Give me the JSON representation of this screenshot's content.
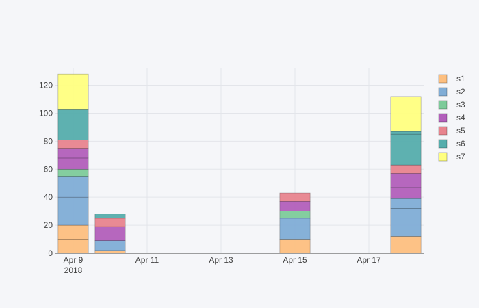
{
  "chart_data": {
    "type": "bar",
    "barmode": "stack",
    "x": [
      "2018-04-09",
      "2018-04-10",
      "2018-04-15",
      "2018-04-18"
    ],
    "x_range": [
      "2018-04-08 12:00",
      "2018-04-18 12:00"
    ],
    "x_ticks": [
      {
        "date": "2018-04-09",
        "label": "Apr 9",
        "sub": "2018"
      },
      {
        "date": "2018-04-11",
        "label": "Apr 11",
        "sub": ""
      },
      {
        "date": "2018-04-13",
        "label": "Apr 13",
        "sub": ""
      },
      {
        "date": "2018-04-15",
        "label": "Apr 15",
        "sub": ""
      },
      {
        "date": "2018-04-17",
        "label": "Apr 17",
        "sub": ""
      }
    ],
    "ylim": [
      0,
      132
    ],
    "y_ticks": [
      0,
      20,
      40,
      60,
      80,
      100,
      120
    ],
    "grid": true,
    "legend_position": "top-right",
    "series": [
      {
        "name": "s1",
        "color": "#fdbf7f",
        "segments": [
          [
            10,
            10
          ],
          [
            2
          ],
          [
            10
          ],
          [
            12
          ]
        ]
      },
      {
        "name": "s2",
        "color": "#80add6",
        "segments": [
          [
            20,
            15
          ],
          [
            7
          ],
          [
            15
          ],
          [
            20,
            7
          ]
        ]
      },
      {
        "name": "s3",
        "color": "#7dcb9a",
        "segments": [
          [
            5
          ],
          [],
          [
            5
          ],
          []
        ]
      },
      {
        "name": "s4",
        "color": "#b25fbb",
        "segments": [
          [
            8,
            7
          ],
          [
            10
          ],
          [
            7
          ],
          [
            8,
            10
          ]
        ]
      },
      {
        "name": "s5",
        "color": "#e8848e",
        "segments": [
          [
            6
          ],
          [
            6
          ],
          [
            6
          ],
          [
            6
          ]
        ]
      },
      {
        "name": "s6",
        "color": "#55adac",
        "segments": [
          [
            22
          ],
          [
            3
          ],
          [],
          [
            22,
            2
          ]
        ]
      },
      {
        "name": "s7",
        "color": "#ffff7f",
        "segments": [
          [
            25
          ],
          [],
          [],
          [
            25
          ]
        ]
      }
    ]
  }
}
